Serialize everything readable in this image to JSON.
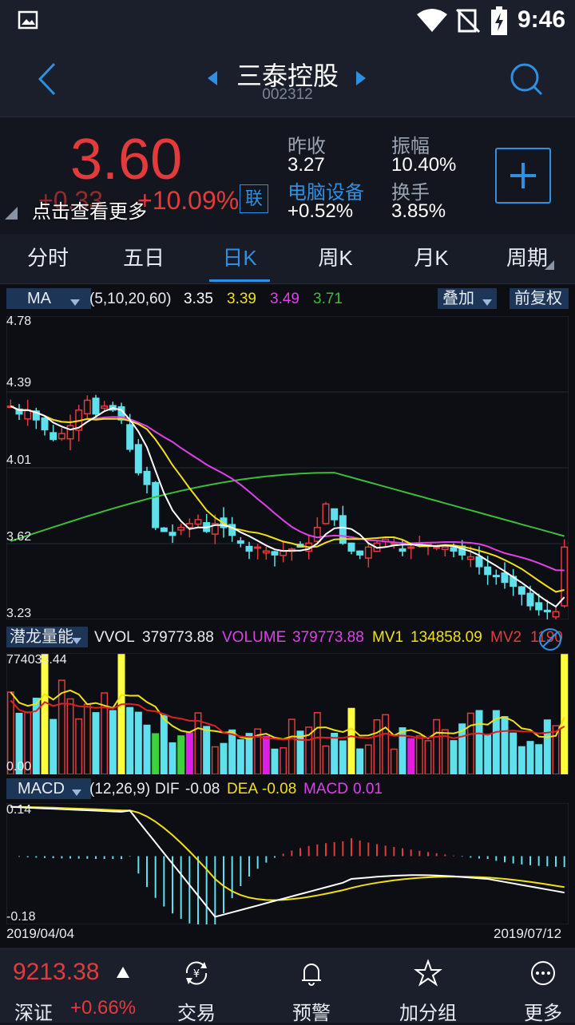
{
  "status": {
    "time": "9:46"
  },
  "header": {
    "title": "三泰控股",
    "code": "002312"
  },
  "quote": {
    "price": "3.60",
    "change": "+0.33",
    "change_pct": "+10.09%",
    "link_badge": "联",
    "tooltip": "点击查看更多",
    "prev_close_label": "昨收",
    "prev_close_value": "3.27",
    "amplitude_label": "振幅",
    "amplitude_value": "10.40%",
    "sector_label": "电脑设备",
    "sector_value": "+0.52%",
    "turnover_label": "换手",
    "turnover_value": "3.85%"
  },
  "tabs": [
    "分时",
    "五日",
    "日K",
    "周K",
    "月K",
    "周期"
  ],
  "ma_bar": {
    "selector": "MA",
    "params": "(5,10,20,60)",
    "ma5": "3.35",
    "ma10": "3.39",
    "ma20": "3.49",
    "ma60": "3.71",
    "overlay": "叠加",
    "adjust": "前复权"
  },
  "kline_axis": [
    "4.78",
    "4.39",
    "4.01",
    "3.62",
    "3.23"
  ],
  "vol_bar": {
    "selector": "潜龙量能",
    "vvol_label": "VVOL",
    "vvol": "379773.88",
    "volume_label": "VOLUME",
    "volume": "379773.88",
    "mv1_label": "MV1",
    "mv1": "134858.09",
    "mv2_label": "MV2",
    "mv2": "1190",
    "ymax": "774033.44",
    "ymin": "0.00"
  },
  "macd_bar": {
    "selector": "MACD",
    "params": "(12,26,9)",
    "dif_label": "DIF",
    "dif": "-0.08",
    "dea_label": "DEA",
    "dea": "-0.08",
    "macd_label": "MACD",
    "macd": "0.01",
    "ymax": "0.14",
    "ymin": "-0.18"
  },
  "date_range": {
    "start": "2019/04/04",
    "end": "2019/07/12"
  },
  "index": {
    "value": "9213.38",
    "name": "深证",
    "change": "+0.66%"
  },
  "bottom_nav": [
    "交易",
    "预警",
    "加分组",
    "更多"
  ],
  "colors": {
    "up": "#e33b3b",
    "down": "#5fe0ec",
    "accent": "#2f8fe0",
    "ma5": "#ffffff",
    "ma10": "#f0e010",
    "ma20": "#e040e8",
    "ma60": "#3cbc3c"
  }
}
